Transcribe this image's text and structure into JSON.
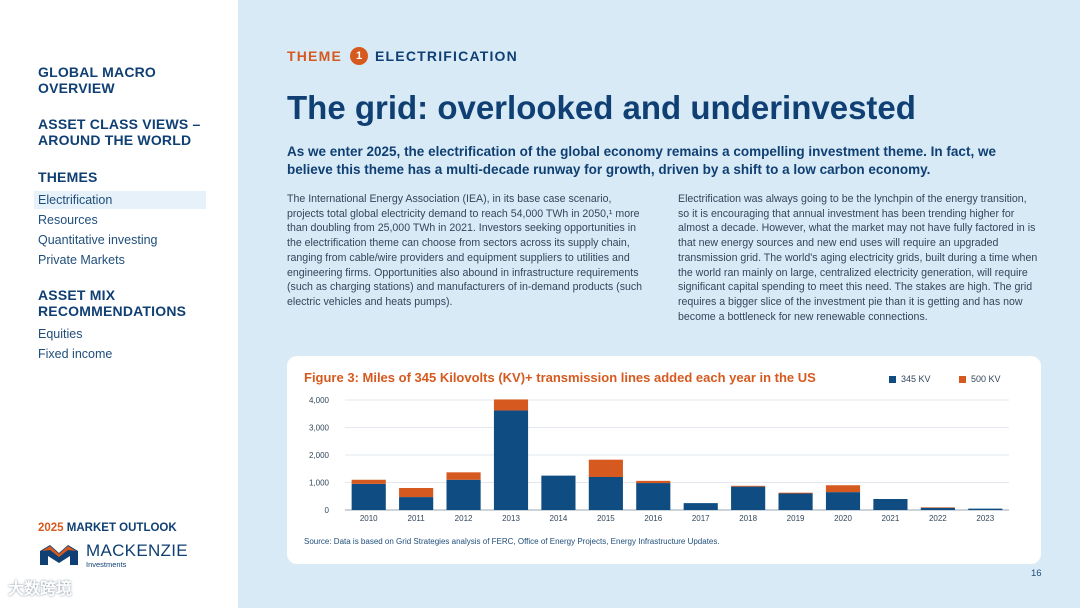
{
  "sidebar": {
    "sections": [
      {
        "heading": "GLOBAL MACRO\nOVERVIEW",
        "items": []
      },
      {
        "heading": "ASSET CLASS VIEWS –\nAROUND THE WORLD",
        "items": []
      },
      {
        "heading": "THEMES",
        "items": [
          "Electrification",
          "Resources",
          "Quantitative investing",
          "Private Markets"
        ]
      },
      {
        "heading": "ASSET MIX\nRECOMMENDATIONS",
        "items": [
          "Equities",
          "Fixed income"
        ]
      }
    ],
    "active_item": "Electrification",
    "outlook_year": "2025",
    "outlook_label": " MARKET OUTLOOK",
    "logo_name": "MACKENZIE",
    "logo_sub": "Investments",
    "watermark": "大数跨境"
  },
  "header": {
    "theme_word": "THEME",
    "theme_number": "1",
    "theme_name": "ELECTRIFICATION",
    "title": "The grid: overlooked and underinvested",
    "lead": "As we enter 2025, the electrification of the global economy remains a compelling investment theme. In fact, we believe this theme has a multi-decade runway for growth, driven by a shift to a low carbon economy."
  },
  "body": {
    "left_column": "The International Energy Association (IEA), in its base case scenario, projects total global electricity demand to reach 54,000 TWh in 2050,¹ more than doubling from 25,000 TWh in 2021. Investors seeking opportunities in the electrification theme can choose from sectors across its supply chain, ranging from cable/wire providers and equipment suppliers to utilities and engineering firms. Opportunities also abound in infrastructure requirements (such as charging stations) and manufacturers of in-demand products (such electric vehicles and heats pumps).",
    "right_column": "Electrification was always going to be the lynchpin of the energy transition, so it is encouraging that annual investment has been trending higher for almost a decade. However, what the market may not have fully factored in is that new energy sources and new end uses will require an upgraded transmission grid. The world's aging electricity grids, built during a time when the world ran mainly on large, centralized electricity generation, will require significant capital spending to meet this need. The stakes are high. The grid requires a bigger slice of the investment pie than it is getting and has now become a bottleneck for new renewable connections."
  },
  "chart_data": {
    "type": "bar",
    "stacked": true,
    "title": "Figure 3: Miles of 345 Kilovolts (KV)+ transmission lines added each year in the US",
    "categories": [
      "2010",
      "2011",
      "2012",
      "2013",
      "2014",
      "2015",
      "2016",
      "2017",
      "2018",
      "2019",
      "2020",
      "2021",
      "2022",
      "2023"
    ],
    "series": [
      {
        "name": "345 KV",
        "color": "#0f4c81",
        "values": [
          950,
          470,
          1100,
          3620,
          1250,
          1200,
          980,
          250,
          850,
          600,
          650,
          400,
          80,
          50
        ]
      },
      {
        "name": "500 KV",
        "color": "#d65a1f",
        "values": [
          150,
          330,
          270,
          400,
          0,
          630,
          80,
          0,
          30,
          30,
          250,
          0,
          20,
          0
        ]
      }
    ],
    "yticks": [
      "0",
      "1,000",
      "2,000",
      "3,000",
      "4,000"
    ],
    "ylim": [
      0,
      4000
    ],
    "grid": true,
    "legend_position": "top-right",
    "source": "Source: Data is based on Grid Strategies analysis of FERC, Office of Energy Projects, Energy Infrastructure Updates."
  },
  "page_number": "16",
  "colors": {
    "navy": "#0f3f73",
    "orange": "#d65a1f",
    "background": "#d8eaf6"
  }
}
